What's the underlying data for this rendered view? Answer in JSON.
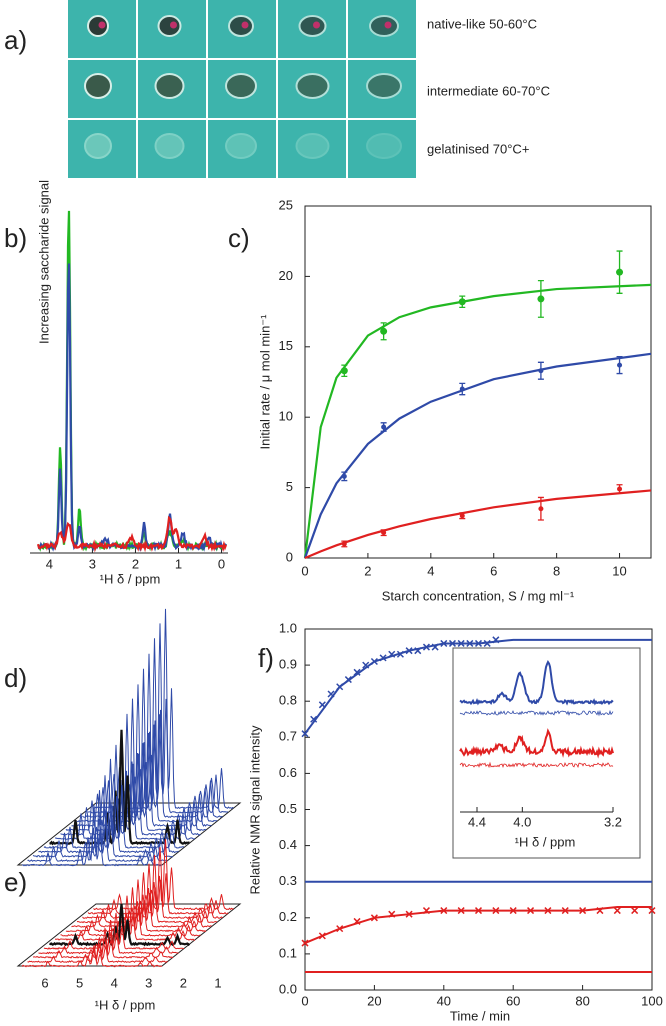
{
  "panel_a": {
    "label": "a)",
    "legend": [
      {
        "text": "native-like 50-60°C",
        "color": "#e8202a"
      },
      {
        "text": "intermediate 60-70°C",
        "color": "#2f4aa8"
      },
      {
        "text": "gelatinised 70°C+",
        "color": "#1fae2a"
      }
    ]
  },
  "chart_data": [
    {
      "type": "spectrum",
      "label": "b)",
      "ylabel": "Increasing saccharide signal",
      "xlabel": "¹H δ / ppm",
      "xlim": [
        4.45,
        -0.15
      ],
      "xticks": [
        4,
        3,
        2,
        1,
        0
      ],
      "colors": [
        "#22b822",
        "#2f4aa8",
        "#e02020"
      ]
    },
    {
      "type": "scatter",
      "label": "c)",
      "xlabel": "Starch concentration, S / mg ml⁻¹",
      "ylabel": "Initial rate / μ mol min⁻¹",
      "xlim": [
        0,
        11
      ],
      "ylim": [
        0,
        25
      ],
      "xticks": [
        0,
        2,
        4,
        6,
        8,
        10
      ],
      "yticks": [
        0,
        5,
        10,
        15,
        20,
        25
      ],
      "x": [
        1.25,
        2.5,
        5,
        7.5,
        10
      ],
      "fit_x": [
        0,
        0.5,
        1,
        2,
        3,
        4,
        6,
        8,
        11
      ],
      "series": [
        {
          "color": "#22b822",
          "values": [
            13.3,
            16.1,
            18.2,
            18.4,
            20.3
          ],
          "errors": [
            0.4,
            0.6,
            0.4,
            1.3,
            1.5
          ],
          "fit": [
            0,
            9.3,
            12.8,
            15.8,
            17.1,
            17.8,
            18.6,
            19.1,
            19.4
          ]
        },
        {
          "color": "#2f4aa8",
          "values": [
            5.8,
            9.3,
            12.0,
            13.3,
            13.7
          ],
          "errors": [
            0.3,
            0.3,
            0.4,
            0.6,
            0.6
          ],
          "fit": [
            0,
            3.1,
            5.3,
            8.1,
            9.9,
            11.1,
            12.7,
            13.6,
            14.5
          ]
        },
        {
          "color": "#e02020",
          "values": [
            1.0,
            1.8,
            3.0,
            3.5,
            4.9
          ],
          "errors": [
            0.2,
            0.2,
            0.2,
            0.8,
            0.3
          ],
          "fit": [
            0,
            0.47,
            0.9,
            1.64,
            2.25,
            2.77,
            3.6,
            4.2,
            4.8
          ]
        }
      ]
    },
    {
      "type": "waterfall",
      "labels": [
        "d)",
        "e)"
      ],
      "xlabel": "¹H δ / ppm",
      "xticks": [
        6,
        5,
        4,
        3,
        2,
        1
      ],
      "colors": [
        "#2f4aa8",
        "#e02020"
      ]
    },
    {
      "type": "line",
      "label": "f)",
      "xlabel": "Time / min",
      "ylabel": "Relative NMR signal intensity",
      "xlim": [
        0,
        100
      ],
      "ylim": [
        0,
        1.0
      ],
      "xticks": [
        0,
        20,
        40,
        60,
        80,
        100
      ],
      "yticks": [
        {
          "value": 0,
          "label": "0.0"
        },
        0.1,
        0.2,
        0.3,
        0.4,
        0.5,
        0.6,
        0.7,
        0.8,
        0.9,
        {
          "value": 1,
          "label": "1.0"
        }
      ],
      "fit_x": [
        0,
        10,
        20,
        30,
        40,
        50,
        60,
        70,
        80,
        90,
        100
      ],
      "series": [
        {
          "color": "#2f4aa8",
          "x": [
            0,
            2.5,
            5,
            7.5,
            10,
            12.5,
            15,
            17.5,
            20,
            22.5,
            25,
            27.5,
            30,
            32.5,
            35,
            37.5,
            40,
            42.5,
            45,
            47.5,
            50,
            52.5,
            55
          ],
          "values": [
            0.71,
            0.75,
            0.79,
            0.82,
            0.84,
            0.86,
            0.88,
            0.9,
            0.91,
            0.92,
            0.93,
            0.93,
            0.94,
            0.94,
            0.95,
            0.95,
            0.96,
            0.96,
            0.96,
            0.96,
            0.96,
            0.96,
            0.97
          ],
          "fit": [
            0.71,
            0.84,
            0.91,
            0.94,
            0.96,
            0.96,
            0.97,
            0.97,
            0.97,
            0.97,
            0.97
          ],
          "baseline": 0.3
        },
        {
          "color": "#e02020",
          "x": [
            0,
            5,
            10,
            15,
            20,
            25,
            30,
            35,
            40,
            45,
            50,
            55,
            60,
            65,
            70,
            75,
            80,
            85,
            90,
            95,
            100
          ],
          "values": [
            0.13,
            0.15,
            0.17,
            0.19,
            0.2,
            0.21,
            0.21,
            0.22,
            0.22,
            0.22,
            0.22,
            0.22,
            0.22,
            0.22,
            0.22,
            0.22,
            0.22,
            0.22,
            0.22,
            0.22,
            0.22
          ],
          "fit": [
            0.13,
            0.17,
            0.2,
            0.21,
            0.22,
            0.22,
            0.22,
            0.22,
            0.22,
            0.23,
            0.23
          ],
          "baseline": 0.05
        }
      ],
      "inset": {
        "xlabel": "¹H δ / ppm",
        "xlim": [
          4.55,
          3.2
        ],
        "xticks": [
          4.4,
          {
            "value": 4,
            "label": "4.0"
          },
          3.2
        ]
      }
    }
  ]
}
